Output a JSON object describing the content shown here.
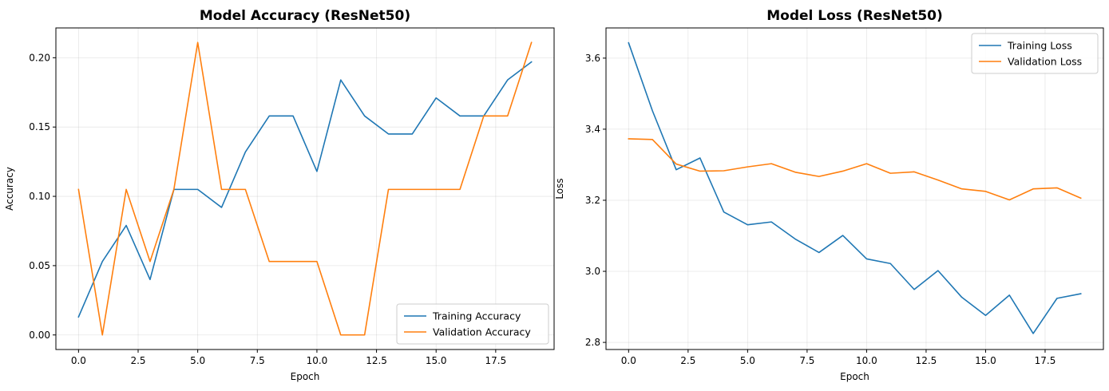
{
  "chart_data": [
    {
      "type": "line",
      "title": "Model Accuracy (ResNet50)",
      "xlabel": "Epoch",
      "ylabel": "Accuracy",
      "xlim": [
        -0.95,
        19.95
      ],
      "ylim": [
        -0.0105,
        0.2215
      ],
      "xticks": [
        0,
        2.5,
        5,
        7.5,
        10,
        12.5,
        15,
        17.5
      ],
      "xtick_labels": [
        "0.0",
        "2.5",
        "5.0",
        "7.5",
        "10.0",
        "12.5",
        "15.0",
        "17.5"
      ],
      "yticks": [
        0,
        0.05,
        0.1,
        0.15,
        0.2
      ],
      "ytick_labels": [
        "0.00",
        "0.05",
        "0.10",
        "0.15",
        "0.20"
      ],
      "grid": true,
      "legend_position": "lower-right",
      "x": [
        0,
        1,
        2,
        3,
        4,
        5,
        6,
        7,
        8,
        9,
        10,
        11,
        12,
        13,
        14,
        15,
        16,
        17,
        18,
        19
      ],
      "series": [
        {
          "name": "Training Accuracy",
          "color": "#1f77b4",
          "values": [
            0.013,
            0.053,
            0.079,
            0.04,
            0.105,
            0.105,
            0.092,
            0.132,
            0.158,
            0.158,
            0.118,
            0.184,
            0.158,
            0.145,
            0.145,
            0.171,
            0.158,
            0.158,
            0.184,
            0.197
          ]
        },
        {
          "name": "Validation Accuracy",
          "color": "#ff7f0e",
          "values": [
            0.105,
            0.0,
            0.105,
            0.053,
            0.105,
            0.211,
            0.105,
            0.105,
            0.053,
            0.053,
            0.053,
            0.0,
            0.0,
            0.105,
            0.105,
            0.105,
            0.105,
            0.158,
            0.158,
            0.211
          ]
        }
      ]
    },
    {
      "type": "line",
      "title": "Model Loss (ResNet50)",
      "xlabel": "Epoch",
      "ylabel": "Loss",
      "xlim": [
        -0.95,
        19.95
      ],
      "ylim": [
        2.78,
        3.685
      ],
      "xticks": [
        0,
        2.5,
        5,
        7.5,
        10,
        12.5,
        15,
        17.5
      ],
      "xtick_labels": [
        "0.0",
        "2.5",
        "5.0",
        "7.5",
        "10.0",
        "12.5",
        "15.0",
        "17.5"
      ],
      "yticks": [
        2.8,
        3.0,
        3.2,
        3.4,
        3.6
      ],
      "ytick_labels": [
        "2.8",
        "3.0",
        "3.2",
        "3.4",
        "3.6"
      ],
      "grid": true,
      "legend_position": "upper-right",
      "x": [
        0,
        1,
        2,
        3,
        4,
        5,
        6,
        7,
        8,
        9,
        10,
        11,
        12,
        13,
        14,
        15,
        16,
        17,
        18,
        19
      ],
      "series": [
        {
          "name": "Training Loss",
          "color": "#1f77b4",
          "values": [
            3.643,
            3.452,
            3.286,
            3.319,
            3.167,
            3.131,
            3.139,
            3.091,
            3.053,
            3.101,
            3.035,
            3.022,
            2.949,
            3.002,
            2.927,
            2.876,
            2.933,
            2.825,
            2.924,
            2.937
          ]
        },
        {
          "name": "Validation Loss",
          "color": "#ff7f0e",
          "values": [
            3.373,
            3.371,
            3.302,
            3.282,
            3.283,
            3.294,
            3.303,
            3.279,
            3.267,
            3.282,
            3.303,
            3.276,
            3.28,
            3.257,
            3.232,
            3.225,
            3.201,
            3.232,
            3.235,
            3.206
          ]
        }
      ]
    }
  ]
}
